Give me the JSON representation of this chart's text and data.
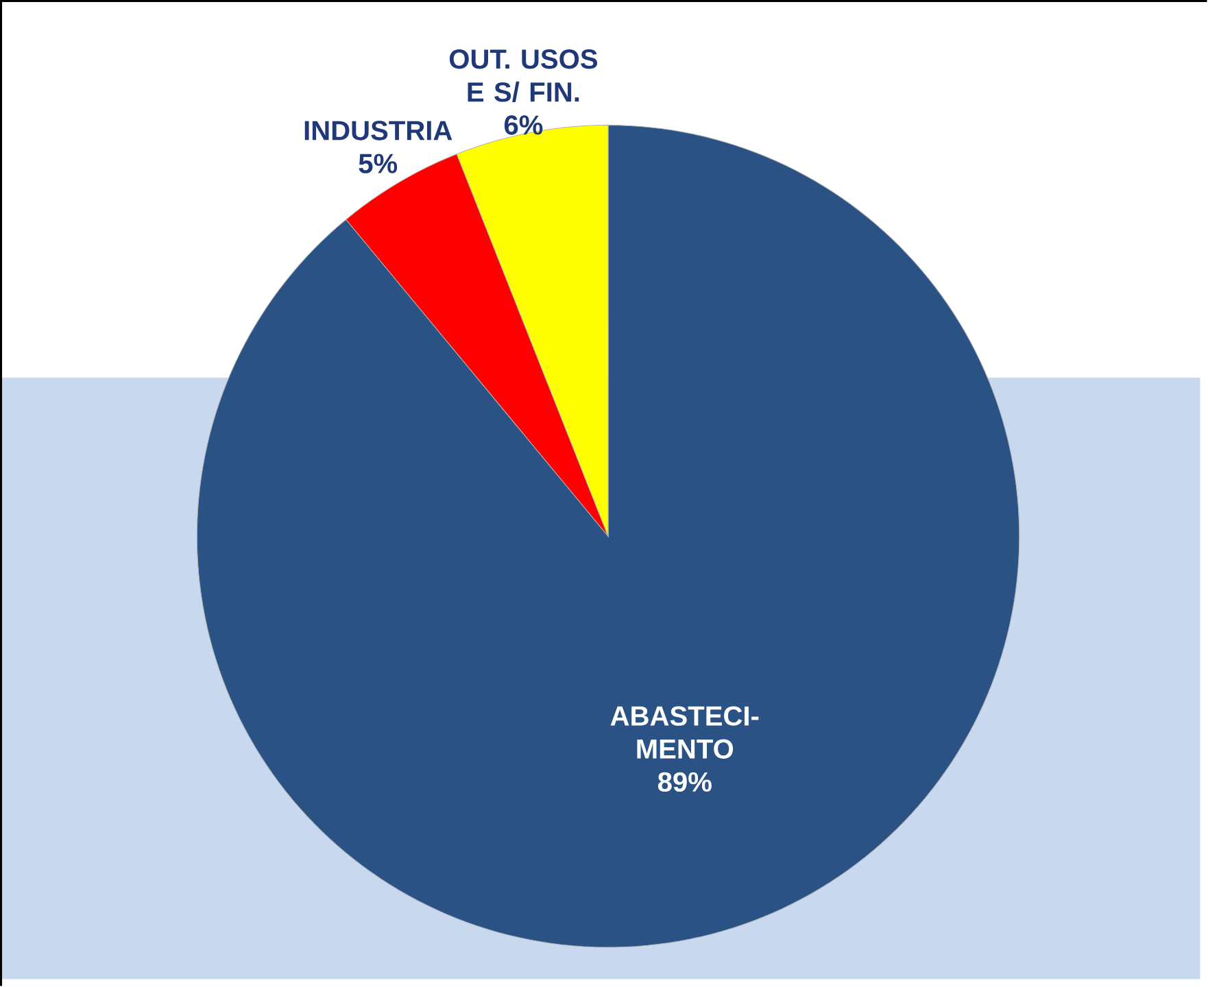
{
  "chart_data": {
    "type": "pie",
    "categories": [
      "ABASTECI-MENTO",
      "INDUSTRIA",
      "OUT. USOS E S/ FIN."
    ],
    "values": [
      89,
      5,
      6
    ],
    "value_labels": [
      "89%",
      "5%",
      "6%"
    ],
    "colors": [
      "#2a5285",
      "#ff0000",
      "#ffff00"
    ]
  }
}
